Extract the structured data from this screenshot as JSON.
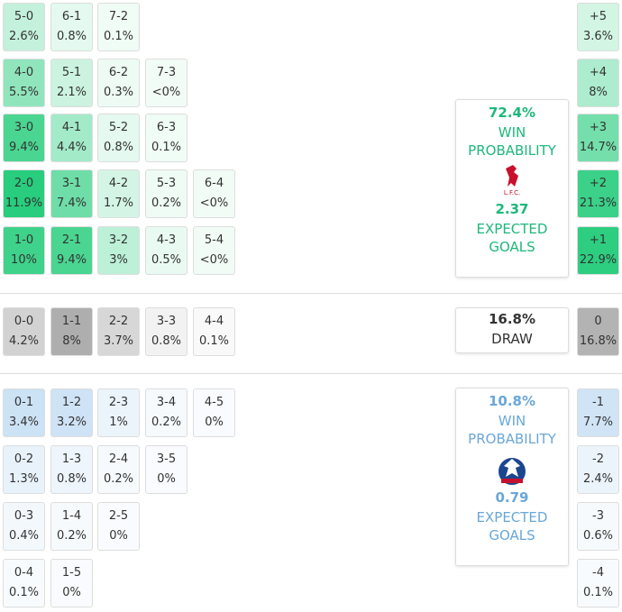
{
  "home_grid": [
    [
      {
        "score": "5-0",
        "prob": "2.6%"
      },
      {
        "score": "6-1",
        "prob": "0.8%"
      },
      {
        "score": "7-2",
        "prob": "0.1%"
      }
    ],
    [
      {
        "score": "4-0",
        "prob": "5.5%"
      },
      {
        "score": "5-1",
        "prob": "2.1%"
      },
      {
        "score": "6-2",
        "prob": "0.3%"
      },
      {
        "score": "7-3",
        "prob": "<0%"
      }
    ],
    [
      {
        "score": "3-0",
        "prob": "9.4%"
      },
      {
        "score": "4-1",
        "prob": "4.4%"
      },
      {
        "score": "5-2",
        "prob": "0.8%"
      },
      {
        "score": "6-3",
        "prob": "0.1%"
      }
    ],
    [
      {
        "score": "2-0",
        "prob": "11.9%"
      },
      {
        "score": "3-1",
        "prob": "7.4%"
      },
      {
        "score": "4-2",
        "prob": "1.7%"
      },
      {
        "score": "5-3",
        "prob": "0.2%"
      },
      {
        "score": "6-4",
        "prob": "<0%"
      }
    ],
    [
      {
        "score": "1-0",
        "prob": "10%"
      },
      {
        "score": "2-1",
        "prob": "9.4%"
      },
      {
        "score": "3-2",
        "prob": "3%"
      },
      {
        "score": "4-3",
        "prob": "0.5%"
      },
      {
        "score": "5-4",
        "prob": "<0%"
      }
    ]
  ],
  "draw_row": [
    {
      "score": "0-0",
      "prob": "4.2%"
    },
    {
      "score": "1-1",
      "prob": "8%"
    },
    {
      "score": "2-2",
      "prob": "3.7%"
    },
    {
      "score": "3-3",
      "prob": "0.8%"
    },
    {
      "score": "4-4",
      "prob": "0.1%"
    }
  ],
  "away_grid": [
    [
      {
        "score": "0-1",
        "prob": "3.4%"
      },
      {
        "score": "1-2",
        "prob": "3.2%"
      },
      {
        "score": "2-3",
        "prob": "1%"
      },
      {
        "score": "3-4",
        "prob": "0.2%"
      },
      {
        "score": "4-5",
        "prob": "0%"
      }
    ],
    [
      {
        "score": "0-2",
        "prob": "1.3%"
      },
      {
        "score": "1-3",
        "prob": "0.8%"
      },
      {
        "score": "2-4",
        "prob": "0.2%"
      },
      {
        "score": "3-5",
        "prob": "0%"
      }
    ],
    [
      {
        "score": "0-3",
        "prob": "0.4%"
      },
      {
        "score": "1-4",
        "prob": "0.2%"
      },
      {
        "score": "2-5",
        "prob": "0%"
      }
    ],
    [
      {
        "score": "0-4",
        "prob": "0.1%"
      },
      {
        "score": "1-5",
        "prob": "0%"
      }
    ]
  ],
  "home_margins": [
    {
      "score": "+5",
      "prob": "3.6%"
    },
    {
      "score": "+4",
      "prob": "8%"
    },
    {
      "score": "+3",
      "prob": "14.7%"
    },
    {
      "score": "+2",
      "prob": "21.3%"
    },
    {
      "score": "+1",
      "prob": "22.9%"
    }
  ],
  "draw_margin": {
    "score": "0",
    "prob": "16.8%"
  },
  "away_margins": [
    {
      "score": "-1",
      "prob": "7.7%"
    },
    {
      "score": "-2",
      "prob": "2.4%"
    },
    {
      "score": "-3",
      "prob": "0.6%"
    },
    {
      "score": "-4",
      "prob": "0.1%"
    }
  ],
  "home_summary": {
    "win_prob": "72.4%",
    "win_label": "WIN PROBABILITY",
    "badge": "L.F.C.",
    "xg": "2.37",
    "xg_label": "EXPECTED GOALS"
  },
  "draw_summary": {
    "prob": "16.8%",
    "label": "DRAW"
  },
  "away_summary": {
    "win_prob": "10.8%",
    "win_label": "WIN PROBABILITY",
    "xg": "0.79",
    "xg_label": "EXPECTED GOALS"
  }
}
